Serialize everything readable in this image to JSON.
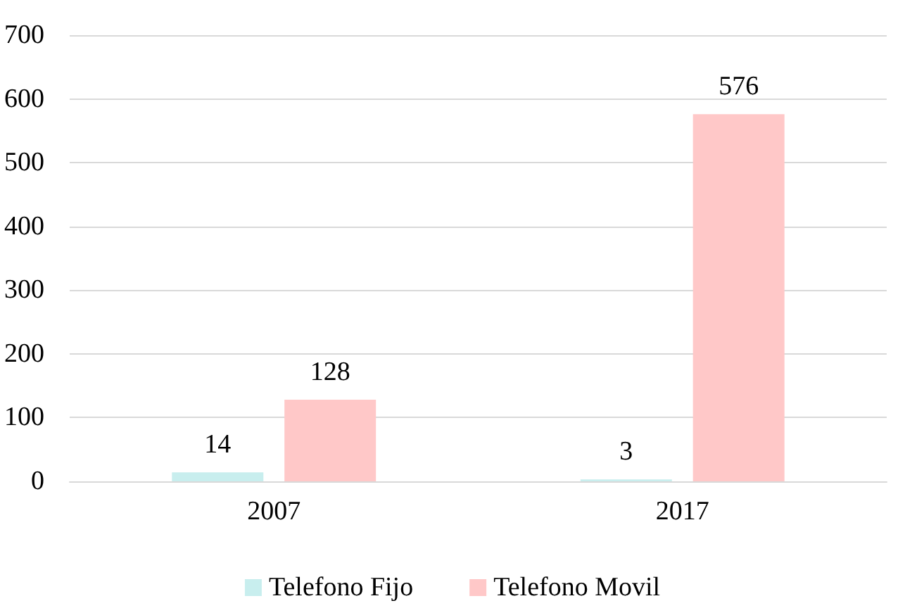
{
  "chart_data": {
    "type": "bar",
    "categories": [
      "2007",
      "2017"
    ],
    "series": [
      {
        "name": "Telefono Fijo",
        "color": "#c8eeee",
        "values": [
          14,
          3
        ]
      },
      {
        "name": "Telefono Movil",
        "color": "#ffc8c8",
        "values": [
          128,
          576
        ]
      }
    ],
    "ylim": [
      0,
      700
    ],
    "yticks": [
      0,
      100,
      200,
      300,
      400,
      500,
      600,
      700
    ],
    "grid": "y",
    "legend": "bottom",
    "data_labels": true
  }
}
